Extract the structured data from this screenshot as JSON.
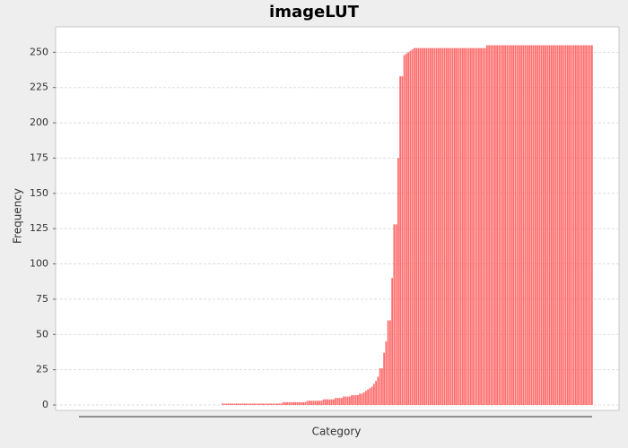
{
  "chart_data": {
    "type": "bar",
    "title": "imageLUT",
    "x_label": "Category",
    "y_label": "Frequency",
    "color": "#ff5555",
    "grid": true,
    "ylim": [
      0,
      268
    ],
    "yticks": [
      0,
      25,
      50,
      75,
      100,
      125,
      150,
      175,
      200,
      225,
      250
    ],
    "categories": [
      null,
      null,
      null,
      null,
      null,
      null,
      null,
      null,
      null,
      null,
      null,
      null,
      null,
      null,
      null,
      null,
      null,
      null,
      null,
      null,
      null,
      null,
      null,
      null,
      null,
      null,
      null,
      null,
      null,
      null,
      null,
      null,
      null,
      null,
      null,
      null,
      null,
      null,
      null,
      null,
      null,
      null,
      null,
      null,
      null,
      null,
      null,
      null,
      null,
      null,
      null,
      null,
      null,
      null,
      null,
      null,
      null,
      null,
      null,
      null,
      null,
      null,
      null,
      null,
      null,
      null,
      null,
      null,
      null,
      null,
      null,
      null,
      null,
      null,
      null,
      null,
      null,
      null,
      null,
      null,
      null,
      null,
      null,
      null,
      null,
      null,
      null,
      null,
      null,
      null,
      null,
      null,
      null,
      null,
      null,
      null,
      null,
      null,
      null,
      null,
      null,
      null,
      null,
      null,
      null,
      null,
      null,
      null,
      null,
      null,
      null,
      null,
      null,
      null,
      null,
      null,
      null,
      null,
      null,
      null,
      null,
      null,
      null,
      null,
      null,
      null,
      null,
      null,
      null,
      null,
      null,
      null,
      null,
      null,
      null,
      null,
      null,
      null,
      null,
      null,
      null,
      null,
      null,
      null,
      null,
      null,
      null,
      null,
      null,
      null,
      null,
      null,
      null,
      null,
      null,
      null,
      null,
      null,
      null,
      null,
      null,
      null,
      null,
      null,
      null,
      null,
      null,
      null,
      null,
      null,
      null,
      null,
      null,
      null,
      null,
      null,
      null,
      null,
      null,
      null,
      null,
      null,
      null,
      null,
      null,
      null,
      null,
      null,
      null,
      null,
      null,
      null,
      null,
      null,
      null,
      null,
      null,
      null,
      null,
      null,
      null,
      null,
      null,
      null,
      null,
      null,
      null,
      null,
      null,
      null,
      null,
      null,
      null,
      null,
      null,
      null,
      null,
      null,
      null,
      null,
      null,
      null,
      null,
      null,
      null,
      null,
      null,
      null,
      null,
      null,
      null,
      null,
      null,
      null,
      null,
      null,
      null,
      null,
      null,
      null,
      null,
      null,
      null,
      null,
      null,
      null,
      null,
      null,
      null,
      null,
      null,
      null,
      null,
      null,
      null,
      null
    ],
    "values": [
      0,
      0,
      0,
      0,
      0,
      0,
      0,
      0,
      0,
      0,
      0,
      0,
      0,
      0,
      0,
      0,
      0,
      0,
      0,
      0,
      0,
      0,
      0,
      0,
      0,
      0,
      0,
      0,
      0,
      0,
      0,
      0,
      0,
      0,
      0,
      0,
      0,
      0,
      0,
      0,
      0,
      0,
      0,
      0,
      0,
      0,
      0,
      0,
      0,
      0,
      0,
      0,
      0,
      0,
      0,
      0,
      0,
      0,
      0,
      0,
      0,
      0,
      0,
      0,
      0,
      0,
      0,
      0,
      0,
      0,
      0,
      0,
      1,
      1,
      1,
      1,
      1,
      1,
      1,
      1,
      1,
      1,
      1,
      1,
      1,
      1,
      1,
      1,
      1,
      1,
      1,
      1,
      1,
      1,
      1,
      1,
      1,
      1,
      1,
      1,
      1,
      1,
      2,
      2,
      2,
      2,
      2,
      2,
      2,
      2,
      2,
      2,
      2,
      2,
      3,
      3,
      3,
      3,
      3,
      3,
      3,
      3,
      4,
      4,
      4,
      4,
      4,
      4,
      5,
      5,
      5,
      5,
      6,
      6,
      6,
      6,
      7,
      7,
      7,
      7,
      8,
      8,
      9,
      10,
      11,
      12,
      13,
      15,
      17,
      20,
      26,
      26,
      37,
      45,
      60,
      60,
      90,
      128,
      128,
      175,
      233,
      233,
      248,
      249,
      250,
      251,
      252,
      253,
      253,
      253,
      253,
      253,
      253,
      253,
      253,
      253,
      253,
      253,
      253,
      253,
      253,
      253,
      253,
      253,
      253,
      253,
      253,
      253,
      253,
      253,
      253,
      253,
      253,
      253,
      253,
      253,
      253,
      253,
      253,
      253,
      253,
      253,
      253,
      255,
      255,
      255,
      255,
      255,
      255,
      255,
      255,
      255,
      255,
      255,
      255,
      255,
      255,
      255,
      255,
      255,
      255,
      255,
      255,
      255,
      255,
      255,
      255,
      255,
      255,
      255,
      255,
      255,
      255,
      255,
      255,
      255,
      255,
      255,
      255,
      255,
      255,
      255,
      255,
      255,
      255,
      255,
      255,
      255,
      255,
      255,
      255,
      255,
      255,
      255,
      255,
      255
    ]
  }
}
